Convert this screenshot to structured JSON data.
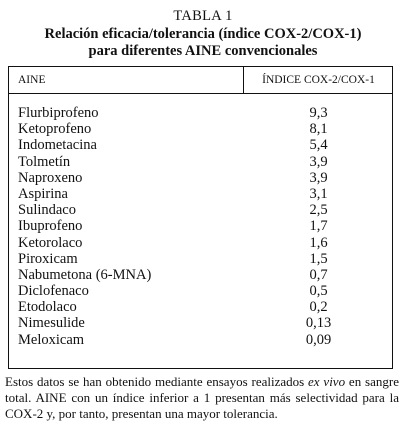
{
  "table": {
    "label": "TABLA 1",
    "title_line1": "Relación eficacia/tolerancia (índice COX-2/COX-1)",
    "title_line2": "para diferentes AINE convencionales",
    "columns": [
      "AINE",
      "ÍNDICE COX-2/COX-1"
    ],
    "rows": [
      {
        "name": "Flurbiprofeno",
        "value": "9,3"
      },
      {
        "name": "Ketoprofeno",
        "value": "8,1"
      },
      {
        "name": "Indometacina",
        "value": "5,4"
      },
      {
        "name": "Tolmetín",
        "value": "3,9"
      },
      {
        "name": "Naproxeno",
        "value": "3,9"
      },
      {
        "name": "Aspirina",
        "value": "3,1"
      },
      {
        "name": "Sulindaco",
        "value": "2,5"
      },
      {
        "name": "Ibuprofeno",
        "value": "1,7"
      },
      {
        "name": "Ketorolaco",
        "value": "1,6"
      },
      {
        "name": "Piroxicam",
        "value": "1,5"
      },
      {
        "name": "Nabumetona (6-MNA)",
        "value": "0,7"
      },
      {
        "name": "Diclofenaco",
        "value": "0,5"
      },
      {
        "name": "Etodolaco",
        "value": "0,2"
      },
      {
        "name": "Nimesulide",
        "value": "0,13"
      },
      {
        "name": "Meloxicam",
        "value": "0,09"
      }
    ]
  },
  "footnote": {
    "part1": "Estos datos se han obtenido mediante ensayos realizados ",
    "italic": "ex vivo",
    "part2": " en sangre total. AINE con un índice inferior a 1 presentan más selectividad para la COX-2 y, por tanto, presentan una mayor tolerancia."
  }
}
